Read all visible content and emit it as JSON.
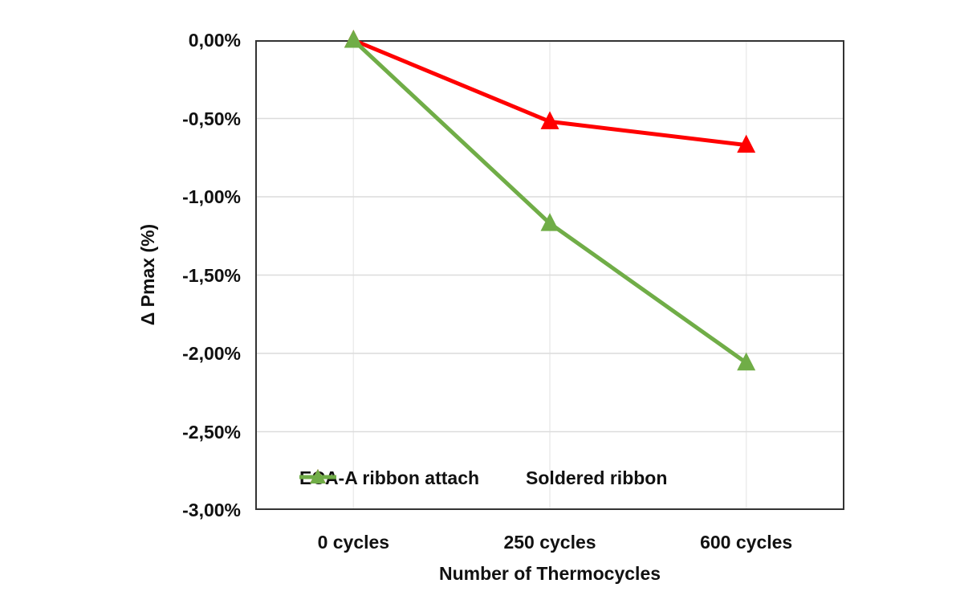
{
  "chart_data": {
    "type": "line",
    "title": "",
    "categories": [
      "0 cycles",
      "250 cycles",
      "600 cycles"
    ],
    "series": [
      {
        "name": "ECA-A ribbon attach",
        "color": "#FF0000",
        "marker": "triangle",
        "unit": "%",
        "values": [
          0.0,
          -0.52,
          -0.67
        ]
      },
      {
        "name": "Soldered ribbon",
        "color": "#70AD47",
        "marker": "triangle",
        "unit": "%",
        "values": [
          0.0,
          -1.17,
          -2.06
        ]
      }
    ],
    "xlabel": "Number of Thermocycles",
    "ylabel": "Δ Pmax (%)",
    "ylim": [
      -3.0,
      0.0
    ],
    "y_tick_values": [
      0,
      -0.5,
      -1.0,
      -1.5,
      -2.0,
      -2.5,
      -3.0
    ],
    "y_tick_labels": [
      "0,00%",
      "-0,50%",
      "-1,00%",
      "-1,50%",
      "-2,00%",
      "-2,50%",
      "-3,00%"
    ],
    "grid": "on",
    "legend_position": "inside-bottom"
  },
  "style": {
    "background": "#FFFFFF",
    "plot_border_color": "#333333",
    "grid_color_horizontal": "#DCDCDC",
    "grid_color_vertical": "#ECECEC",
    "text_color": "#111111",
    "line_width": 5
  }
}
